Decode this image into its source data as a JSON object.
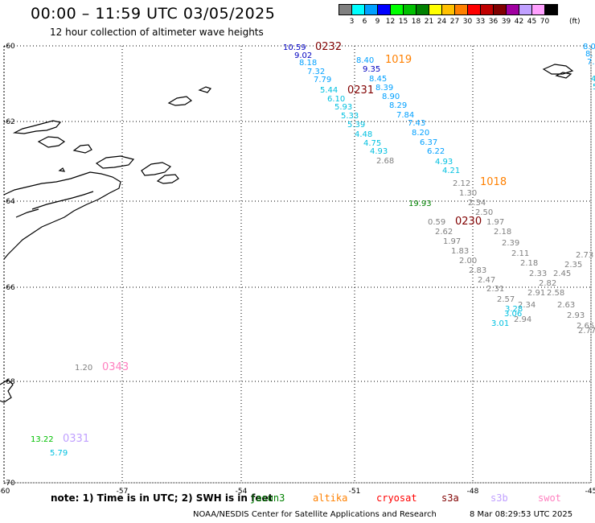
{
  "header": {
    "title": "00:00 – 11:59 UTC 03/05/2025",
    "subtitle": "12 hour collection of altimeter wave heights"
  },
  "legend": {
    "colors": [
      "#808080",
      "#00ffff",
      "#00a0ff",
      "#0000ff",
      "#00ff00",
      "#00c000",
      "#008000",
      "#ffff00",
      "#ffc000",
      "#ff8000",
      "#ff0000",
      "#c00000",
      "#800000",
      "#a000a0",
      "#c0a0ff",
      "#ffa0ff",
      "#000000"
    ],
    "labels": [
      "3",
      "6",
      "9",
      "12",
      "15",
      "18",
      "21",
      "24",
      "27",
      "30",
      "33",
      "36",
      "39",
      "42",
      "45",
      "70"
    ],
    "unit": "(ft)"
  },
  "lat_labels": [
    "-60",
    "-62",
    "-64",
    "-66",
    "-68",
    "-70"
  ],
  "lon_labels": [
    "-60",
    "-57",
    "-54",
    "-51",
    "-48",
    "-45"
  ],
  "passes": [
    {
      "time": "0232",
      "color": "#800000"
    },
    {
      "time": "1019",
      "color": "#ff8000"
    },
    {
      "time": "0231",
      "color": "#800000"
    },
    {
      "time": "1018",
      "color": "#ff8000"
    },
    {
      "time": "0230",
      "color": "#800000"
    },
    {
      "time": "0343",
      "color": "#ff80c0"
    },
    {
      "time": "0331",
      "color": "#c0a0ff"
    }
  ],
  "readings": [
    {
      "v": "10.59",
      "c": "#0000c0"
    },
    {
      "v": "9.02",
      "c": "#0000c0"
    },
    {
      "v": "8.18",
      "c": "#00a0ff"
    },
    {
      "v": "7.32",
      "c": "#00a0ff"
    },
    {
      "v": "7.79",
      "c": "#00a0ff"
    },
    {
      "v": "5.44",
      "c": "#00c0e0"
    },
    {
      "v": "6.10",
      "c": "#00c0e0"
    },
    {
      "v": "5.93",
      "c": "#00c0e0"
    },
    {
      "v": "5.33",
      "c": "#00c0e0"
    },
    {
      "v": "5.39",
      "c": "#00c0e0"
    },
    {
      "v": "4.48",
      "c": "#00c0e0"
    },
    {
      "v": "4.75",
      "c": "#00c0e0"
    },
    {
      "v": "4.93",
      "c": "#00c0e0"
    },
    {
      "v": "2.68",
      "c": "#808080"
    },
    {
      "v": "8.40",
      "c": "#00a0ff"
    },
    {
      "v": "9.35",
      "c": "#0000c0"
    },
    {
      "v": "8.45",
      "c": "#00a0ff"
    },
    {
      "v": "8.39",
      "c": "#00a0ff"
    },
    {
      "v": "8.90",
      "c": "#00a0ff"
    },
    {
      "v": "8.29",
      "c": "#00a0ff"
    },
    {
      "v": "7.84",
      "c": "#00a0ff"
    },
    {
      "v": "7.43",
      "c": "#00a0ff"
    },
    {
      "v": "8.20",
      "c": "#00a0ff"
    },
    {
      "v": "6.37",
      "c": "#00a0ff"
    },
    {
      "v": "6.22",
      "c": "#00a0ff"
    },
    {
      "v": "4.93",
      "c": "#00c0e0"
    },
    {
      "v": "4.21",
      "c": "#00c0e0"
    },
    {
      "v": "2.12",
      "c": "#808080"
    },
    {
      "v": "1.30",
      "c": "#808080"
    },
    {
      "v": "2.34",
      "c": "#808080"
    },
    {
      "v": "2.50",
      "c": "#808080"
    },
    {
      "v": "1.97",
      "c": "#808080"
    },
    {
      "v": "19.93",
      "c": "#008000"
    },
    {
      "v": "0.59",
      "c": "#808080"
    },
    {
      "v": "2.62",
      "c": "#808080"
    },
    {
      "v": "1.97",
      "c": "#808080"
    },
    {
      "v": "1.83",
      "c": "#808080"
    },
    {
      "v": "2.00",
      "c": "#808080"
    },
    {
      "v": "2.83",
      "c": "#808080"
    },
    {
      "v": "2.47",
      "c": "#808080"
    },
    {
      "v": "2.31",
      "c": "#808080"
    },
    {
      "v": "2.57",
      "c": "#808080"
    },
    {
      "v": "2.18",
      "c": "#808080"
    },
    {
      "v": "2.39",
      "c": "#808080"
    },
    {
      "v": "2.11",
      "c": "#808080"
    },
    {
      "v": "2.18",
      "c": "#808080"
    },
    {
      "v": "2.33",
      "c": "#808080"
    },
    {
      "v": "2.82",
      "c": "#808080"
    },
    {
      "v": "2.91",
      "c": "#808080"
    },
    {
      "v": "2.58",
      "c": "#808080"
    },
    {
      "v": "2.45",
      "c": "#808080"
    },
    {
      "v": "2.35",
      "c": "#808080"
    },
    {
      "v": "2.73",
      "c": "#808080"
    },
    {
      "v": "2.63",
      "c": "#808080"
    },
    {
      "v": "2.93",
      "c": "#808080"
    },
    {
      "v": "2.65",
      "c": "#808080"
    },
    {
      "v": "2.77",
      "c": "#808080"
    },
    {
      "v": "2.34",
      "c": "#808080"
    },
    {
      "v": "2.94",
      "c": "#808080"
    },
    {
      "v": "3.06",
      "c": "#00c0e0"
    },
    {
      "v": "3.01",
      "c": "#00c0e0"
    },
    {
      "v": "3.28",
      "c": "#00c0e0"
    },
    {
      "v": "8.0",
      "c": "#00a0ff"
    },
    {
      "v": "8.",
      "c": "#00a0ff"
    },
    {
      "v": "7.",
      "c": "#00a0ff"
    },
    {
      "v": "4",
      "c": "#00c0e0"
    },
    {
      "v": "5",
      "c": "#00c0e0"
    },
    {
      "v": "1.20",
      "c": "#808080"
    },
    {
      "v": "13.22",
      "c": "#00c000"
    },
    {
      "v": "5.79",
      "c": "#00c0e0"
    }
  ],
  "footer": {
    "note": "note:  1) Time is in UTC; 2) SWH is in feet",
    "missions": [
      {
        "name": "jason3",
        "color": "#008000"
      },
      {
        "name": "altika",
        "color": "#ff8000"
      },
      {
        "name": "cryosat",
        "color": "#ff0000"
      },
      {
        "name": "s3a",
        "color": "#800000"
      },
      {
        "name": "s3b",
        "color": "#c0a0ff"
      },
      {
        "name": "swot",
        "color": "#ff80c0"
      }
    ],
    "credit": "NOAA/NESDIS Center for Satellite Applications and Research",
    "stamp": "8 Mar 08:29:53 UTC 2025"
  }
}
